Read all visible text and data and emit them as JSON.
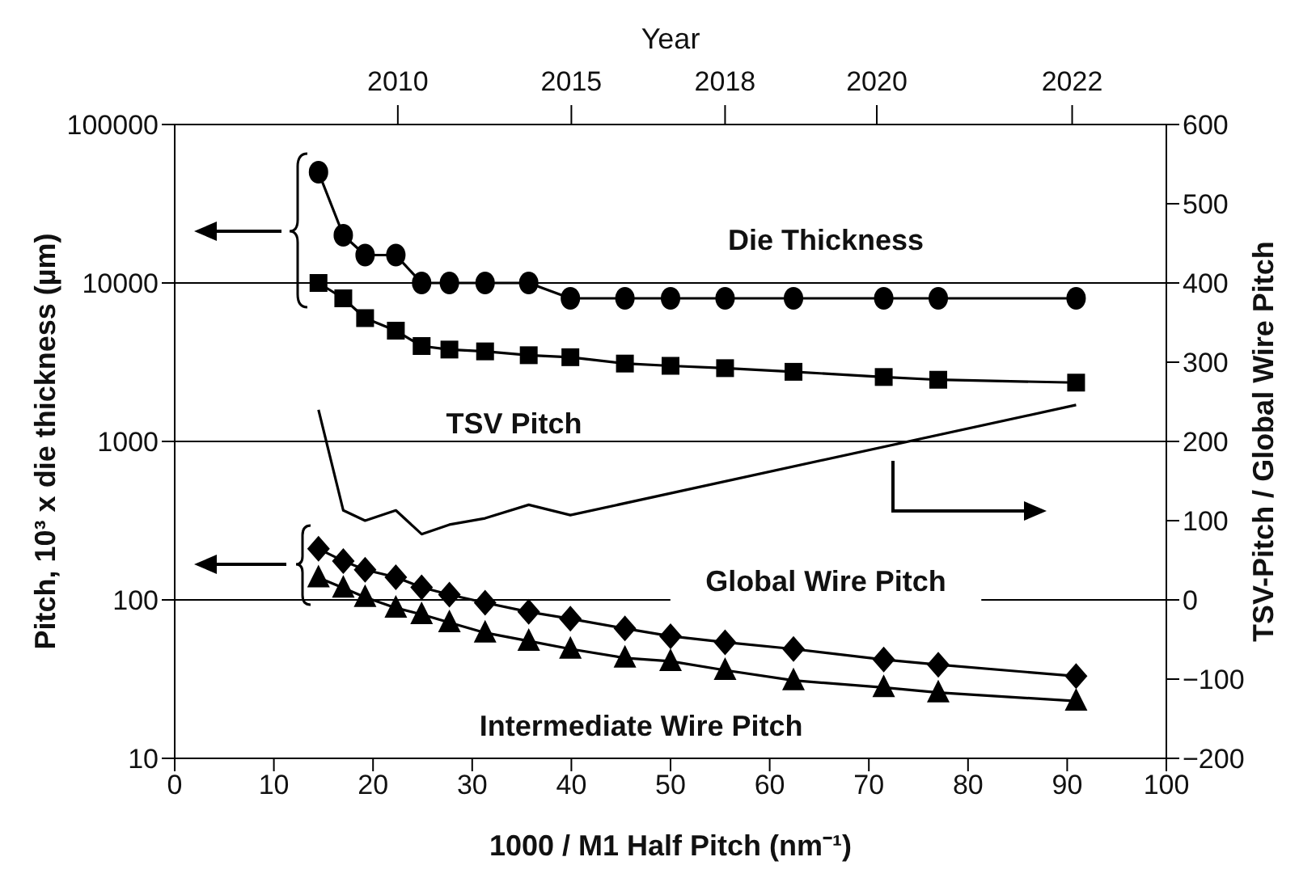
{
  "chart_data": {
    "type": "line",
    "xlabel": "1000 / M1 Half Pitch (nm⁻¹)",
    "ylabel": "Pitch, 10³ x die thickness (µm)",
    "y2label": "TSV-Pitch / Global Wire Pitch",
    "x2label": "Year",
    "xlim": [
      0,
      100
    ],
    "xticks": [
      0,
      10,
      20,
      30,
      40,
      50,
      60,
      70,
      80,
      90,
      100
    ],
    "annotations": [
      "2010",
      "2015",
      "2018",
      "2020",
      "2022"
    ],
    "ylim": [
      10,
      100000
    ],
    "yticks": [
      10,
      100,
      1000,
      10000,
      100000
    ],
    "y2lim": [
      -200,
      600
    ],
    "y2ticks": [
      -200,
      -100,
      0,
      100,
      200,
      300,
      400,
      500,
      600
    ],
    "log": "y",
    "grid": "y",
    "series": [
      {
        "name": "Die Thickness",
        "color": "#000000",
        "marker": "circle",
        "x": [
          14.5,
          17.0,
          19.2,
          22.3,
          24.9,
          27.7,
          31.3,
          35.7,
          39.9,
          45.4,
          50.0,
          55.5,
          62.4,
          71.5,
          77.0,
          90.9
        ],
        "values": [
          50000,
          20000,
          15000,
          15000,
          10000,
          10000,
          10000,
          10000,
          8000,
          8000,
          8000,
          8000,
          8000,
          8000,
          8000,
          8000
        ]
      },
      {
        "name": "TSV Pitch",
        "color": "#000000",
        "marker": "square",
        "x": [
          14.5,
          17.0,
          19.2,
          22.3,
          24.9,
          27.7,
          31.3,
          35.7,
          39.9,
          45.4,
          50.0,
          55.5,
          62.4,
          71.5,
          77.0,
          90.9
        ],
        "values": [
          10000,
          8000,
          6000,
          5000,
          4000,
          3800,
          3700,
          3500,
          3400,
          3100,
          3000,
          2900,
          2750,
          2550,
          2450,
          2350
        ]
      },
      {
        "color": "#000000",
        "marker": "none",
        "axis": "y2",
        "x": [
          14.5,
          17.0,
          19.2,
          22.3,
          24.9,
          27.7,
          31.3,
          35.7,
          39.9,
          90.9
        ],
        "values": [
          240,
          113,
          100,
          113,
          83,
          95,
          103,
          120,
          107,
          246
        ]
      },
      {
        "name": "Global Wire Pitch",
        "color": "#000000",
        "marker": "diamond",
        "x": [
          14.5,
          17.0,
          19.2,
          22.3,
          24.9,
          27.7,
          31.3,
          35.7,
          39.9,
          45.4,
          50.0,
          55.5,
          62.4,
          71.5,
          77.0,
          90.9
        ],
        "values": [
          210,
          176,
          155,
          139,
          120,
          108,
          96,
          84,
          76,
          66,
          59,
          54,
          49,
          42,
          39,
          33
        ]
      },
      {
        "name": "Intermediate Wire Pitch",
        "color": "#000000",
        "marker": "triangle",
        "x": [
          14.5,
          17.0,
          19.2,
          22.3,
          24.9,
          27.7,
          31.3,
          35.7,
          39.9,
          45.4,
          50.0,
          55.5,
          62.4,
          71.5,
          77.0,
          90.9
        ],
        "values": [
          138,
          119,
          104,
          89,
          81,
          72,
          62,
          55,
          49,
          43,
          41,
          36,
          31,
          28,
          26,
          23
        ]
      }
    ]
  }
}
